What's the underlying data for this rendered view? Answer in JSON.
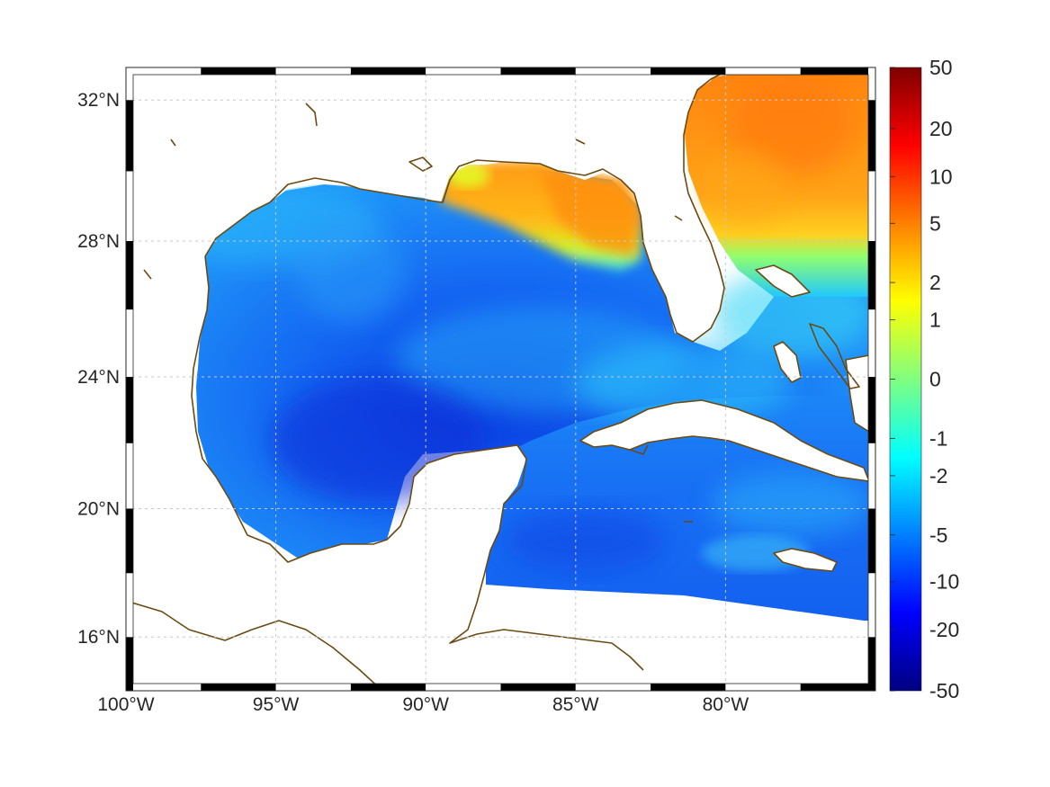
{
  "map": {
    "region": "Gulf of Mexico and Caribbean",
    "projection": "mercator",
    "lon_range": [
      -100,
      -75
    ],
    "lat_range": [
      14.3,
      32.9
    ],
    "grid": true,
    "frame_style": "alternating black-white border",
    "land_color": "#ffffff",
    "coastline_color": "#6b4a12",
    "lon_ticks": [
      {
        "value": -100,
        "label": "100°W"
      },
      {
        "value": -95,
        "label": "95°W"
      },
      {
        "value": -90,
        "label": "90°W"
      },
      {
        "value": -85,
        "label": "85°W"
      },
      {
        "value": -80,
        "label": "80°W"
      }
    ],
    "lat_ticks": [
      {
        "value": 32,
        "label": "32°N"
      },
      {
        "value": 28,
        "label": "28°N"
      },
      {
        "value": 24,
        "label": "24°N"
      },
      {
        "value": 20,
        "label": "20°N"
      },
      {
        "value": 16,
        "label": "16°N"
      }
    ]
  },
  "field": {
    "colormap": "jet",
    "description_of_pattern": "negative values (blue) across central Gulf and Caribbean; positive values (orange) along northern Gulf coast and Atlantic off Florida/Georgia",
    "regions": [
      {
        "area": "Atlantic off Georgia/Carolina",
        "approx_value": 5
      },
      {
        "area": "Northeastern Gulf / Florida panhandle shelf",
        "approx_value": 5
      },
      {
        "area": "Mississippi delta",
        "approx_value": 1
      },
      {
        "area": "Central Gulf of Mexico",
        "approx_value": -10
      },
      {
        "area": "Bay of Campeche",
        "approx_value": -5
      },
      {
        "area": "Caribbean south of Cuba",
        "approx_value": -5
      },
      {
        "area": "Florida Straits",
        "approx_value": -2
      }
    ]
  },
  "colorbar": {
    "ticks": [
      "50",
      "20",
      "10",
      "5",
      "2",
      "1",
      "0",
      "-1",
      "-2",
      "-5",
      "-10",
      "-20",
      "-50"
    ],
    "colors": [
      "#800000",
      "#ff0000",
      "#ff8000",
      "#ffff00",
      "#80ff80",
      "#00ffff",
      "#0080ff",
      "#0000ff",
      "#000080"
    ]
  }
}
